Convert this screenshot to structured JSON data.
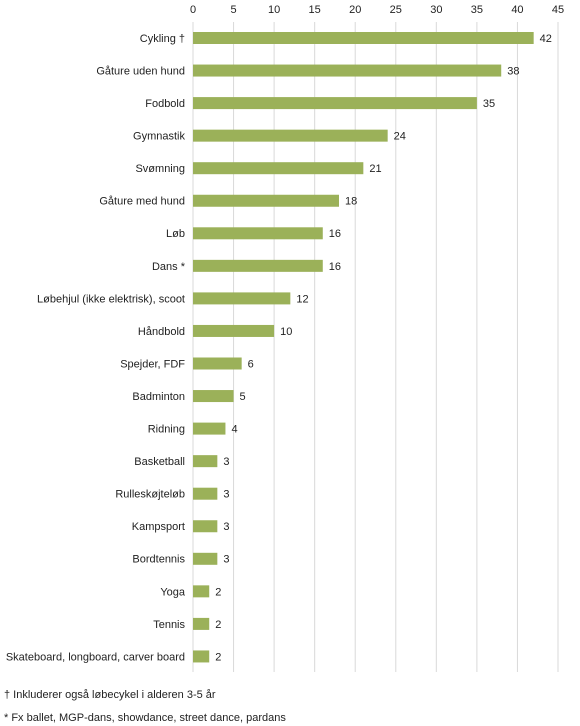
{
  "chart_data": {
    "type": "bar",
    "orientation": "horizontal",
    "categories": [
      "Cykling †",
      "Gåture uden hund",
      "Fodbold",
      "Gymnastik",
      "Svømning",
      "Gåture med hund",
      "Løb",
      "Dans *",
      "Løbehjul (ikke elektrisk), scoot",
      "Håndbold",
      "Spejder, FDF",
      "Badminton",
      "Ridning",
      "Basketball",
      "Rulleskøjteløb",
      "Kampsport",
      "Bordtennis",
      "Yoga",
      "Tennis",
      "Skateboard, longboard, carver board"
    ],
    "values": [
      42,
      38,
      35,
      24,
      21,
      18,
      16,
      16,
      12,
      10,
      6,
      5,
      4,
      3,
      3,
      3,
      3,
      2,
      2,
      2
    ],
    "color": "#9bb159",
    "xlim": [
      0,
      45
    ],
    "xticks": [
      0,
      5,
      10,
      15,
      20,
      25,
      30,
      35,
      40,
      45
    ],
    "grid": true,
    "notes": [
      "† Inkluderer også løbecykel i alderen 3-5 år",
      "* Fx ballet, MGP-dans, showdance, street dance, pardans"
    ]
  }
}
